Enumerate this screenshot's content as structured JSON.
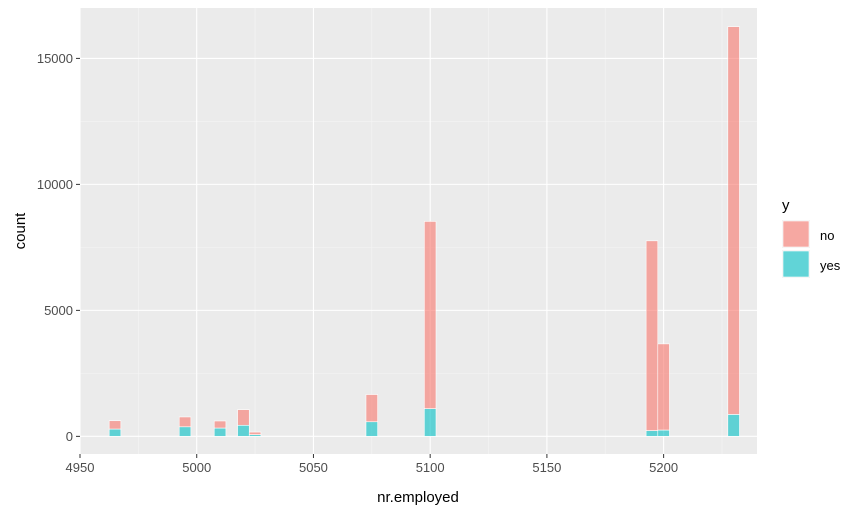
{
  "chart_data": {
    "type": "bar",
    "subtype": "stacked-histogram",
    "title": "",
    "xlabel": "nr.employed",
    "ylabel": "count",
    "xlim": [
      4950,
      5240
    ],
    "ylim": [
      -700,
      17000
    ],
    "x_ticks": [
      4950,
      5000,
      5050,
      5100,
      5150,
      5200
    ],
    "y_ticks": [
      0,
      5000,
      10000,
      15000
    ],
    "grid": true,
    "bin_width": 5,
    "legend": {
      "title": "y",
      "position": "right",
      "entries": [
        "no",
        "yes"
      ]
    },
    "series": [
      {
        "name": "no",
        "color": "#F8766D",
        "opacity": 0.6
      },
      {
        "name": "yes",
        "color": "#00BFC4",
        "opacity": 0.6
      }
    ],
    "bins": [
      {
        "x": 4965,
        "no": 330,
        "yes": 290
      },
      {
        "x": 4995,
        "no": 390,
        "yes": 380
      },
      {
        "x": 5010,
        "no": 280,
        "yes": 330
      },
      {
        "x": 5020,
        "no": 620,
        "yes": 440
      },
      {
        "x": 5025,
        "no": 100,
        "yes": 70
      },
      {
        "x": 5075,
        "no": 1080,
        "yes": 580
      },
      {
        "x": 5100,
        "no": 7430,
        "yes": 1100
      },
      {
        "x": 5195,
        "no": 7530,
        "yes": 230
      },
      {
        "x": 5200,
        "no": 3420,
        "yes": 250
      },
      {
        "x": 5230,
        "no": 15390,
        "yes": 870
      }
    ]
  }
}
